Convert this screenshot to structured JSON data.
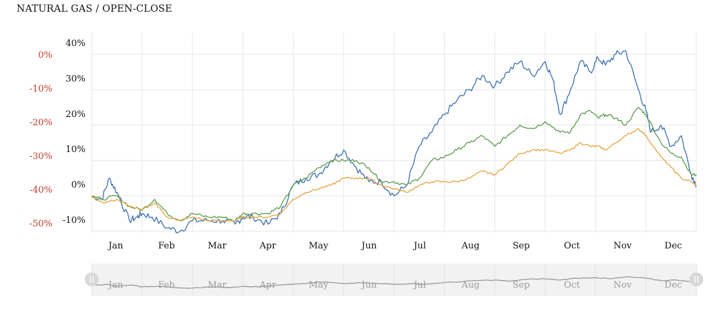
{
  "title": "NATURAL GAS / OPEN-CLOSE",
  "chart_data": {
    "type": "line",
    "x_unit": "month",
    "months": [
      "Jan",
      "Feb",
      "Mar",
      "Apr",
      "May",
      "Jun",
      "Jul",
      "Aug",
      "Sep",
      "Oct",
      "Nov",
      "Dec"
    ],
    "y_left": {
      "ticks": [
        "0%",
        "-10%",
        "-20%",
        "-30%",
        "-40%",
        "-50%"
      ],
      "color": "#c0392b"
    },
    "y_right": {
      "ticks": [
        "40%",
        "30%",
        "20%",
        "10%",
        "0%",
        "-10%"
      ],
      "ylim": [
        -12,
        42
      ]
    },
    "grid": true,
    "navigator": true,
    "series": [
      {
        "color": "#3a6fae",
        "x": [
          0.0,
          0.2,
          0.35,
          0.5,
          0.75,
          0.9,
          1.0,
          1.2,
          1.5,
          1.75,
          2.0,
          2.3,
          2.6,
          2.85,
          3.0,
          3.2,
          3.5,
          3.75,
          4.0,
          4.25,
          4.5,
          4.75,
          5.0,
          5.25,
          5.5,
          5.75,
          6.0,
          6.25,
          6.5,
          6.75,
          7.0,
          7.25,
          7.5,
          7.75,
          8.0,
          8.25,
          8.5,
          8.75,
          9.0,
          9.15,
          9.3,
          9.5,
          9.7,
          9.9,
          10.05,
          10.2,
          10.4,
          10.6,
          10.85,
          11.0,
          11.1,
          11.3,
          11.5,
          11.7,
          11.9,
          12.0
        ],
        "values": [
          0,
          -1,
          5,
          1,
          -7,
          -6,
          -5,
          -6,
          -9,
          -10,
          -7,
          -7,
          -7,
          -8,
          -6,
          -6,
          -8,
          -5,
          3,
          5,
          6,
          10,
          13,
          8,
          4,
          4,
          0,
          3,
          14,
          18,
          23,
          27,
          30,
          34,
          31,
          35,
          38,
          34,
          38,
          33,
          23,
          30,
          38,
          35,
          39,
          37,
          40,
          41,
          30,
          24,
          18,
          20,
          14,
          17,
          6,
          3
        ],
        "dec_end": 3
      },
      {
        "color": "#5a9a4e",
        "x": [
          0.0,
          0.2,
          0.5,
          0.75,
          1.0,
          1.25,
          1.5,
          1.75,
          2.0,
          2.3,
          2.6,
          2.85,
          3.0,
          3.2,
          3.5,
          3.75,
          4.0,
          4.25,
          4.5,
          4.75,
          5.0,
          5.25,
          5.5,
          5.75,
          6.0,
          6.25,
          6.5,
          6.75,
          7.0,
          7.25,
          7.5,
          7.75,
          8.0,
          8.25,
          8.5,
          8.75,
          9.0,
          9.3,
          9.5,
          9.7,
          9.9,
          10.05,
          10.2,
          10.4,
          10.6,
          10.85,
          11.0,
          11.3,
          11.5,
          11.7,
          11.9,
          12.0
        ],
        "values": [
          0,
          -1,
          0,
          -3,
          -4,
          -1,
          -5,
          -7,
          -5,
          -6,
          -6,
          -7,
          -5,
          -5,
          -5,
          -3,
          3,
          5,
          8,
          10,
          10,
          10,
          8,
          4,
          4,
          3,
          5,
          10,
          11,
          13,
          15,
          17,
          14,
          17,
          20,
          19,
          21,
          18,
          18,
          23,
          24,
          22,
          23,
          22,
          20,
          25,
          23,
          15,
          12,
          11,
          6,
          6
        ]
      },
      {
        "color": "#e7a23c",
        "x": [
          0.0,
          0.25,
          0.5,
          0.75,
          1.0,
          1.25,
          1.5,
          1.75,
          2.0,
          2.3,
          2.6,
          2.85,
          3.0,
          3.2,
          3.5,
          3.75,
          4.0,
          4.25,
          4.5,
          4.75,
          5.0,
          5.25,
          5.5,
          5.75,
          6.0,
          6.25,
          6.5,
          6.75,
          7.0,
          7.25,
          7.5,
          7.75,
          8.0,
          8.25,
          8.5,
          8.75,
          9.0,
          9.3,
          9.5,
          9.7,
          9.9,
          10.05,
          10.2,
          10.4,
          10.6,
          10.85,
          11.0,
          11.3,
          11.5,
          11.7,
          11.9,
          12.0
        ],
        "values": [
          0,
          -2,
          -1,
          -3,
          -4,
          -2,
          -6,
          -7,
          -6,
          -7,
          -7,
          -7,
          -6,
          -6,
          -6,
          -5,
          -1,
          1,
          2,
          3,
          5,
          5,
          5,
          3,
          2,
          1,
          3,
          4,
          4,
          4,
          5,
          7,
          6,
          9,
          12,
          13,
          13,
          12,
          13,
          15,
          14,
          14,
          13,
          15,
          17,
          19,
          17,
          11,
          8,
          5,
          4,
          3
        ]
      },
      {
        "color": "#999999",
        "navigator_only": true,
        "x": [
          0.0,
          0.3,
          0.5,
          0.8,
          1.0,
          1.3,
          1.6,
          2.0,
          2.3,
          2.7,
          3.0,
          3.3,
          3.6,
          4.0,
          4.3,
          4.6,
          5.0,
          5.3,
          5.6,
          6.0,
          6.3,
          6.6,
          7.0,
          7.3,
          7.6,
          8.0,
          8.3,
          8.6,
          9.0,
          9.3,
          9.6,
          10.0,
          10.3,
          10.6,
          11.0,
          11.3,
          11.6,
          12.0
        ],
        "values": [
          0,
          2,
          -1,
          1,
          -2,
          -1,
          -3,
          -4,
          -2,
          -3,
          -1,
          -2,
          0,
          2,
          4,
          6,
          3,
          5,
          4,
          2,
          3,
          2,
          5,
          6,
          8,
          9,
          7,
          10,
          11,
          9,
          12,
          13,
          11,
          14,
          12,
          8,
          9,
          6
        ]
      }
    ]
  }
}
